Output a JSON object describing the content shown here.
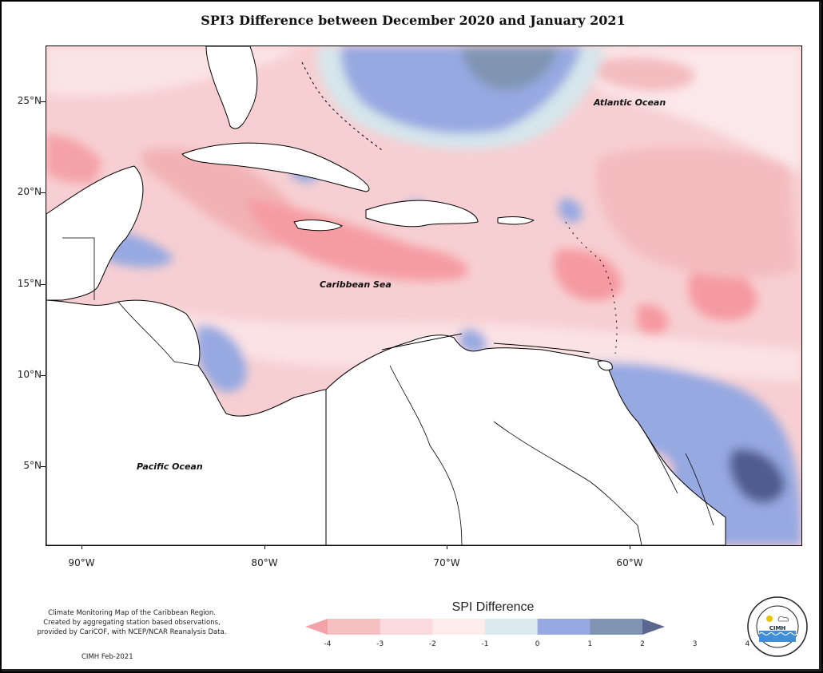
{
  "title": "SPI3 Difference between December 2020 and January 2021",
  "map": {
    "lat_labels": [
      "25°N",
      "20°N",
      "15°N",
      "10°N",
      "5°N"
    ],
    "lon_labels": [
      "90°W",
      "80°W",
      "70°W",
      "60°W"
    ],
    "region_labels": {
      "atlantic": "Atlantic Ocean",
      "caribbean": "Caribbean Sea",
      "pacific": "Pacific Ocean"
    }
  },
  "legend": {
    "title": "SPI Difference",
    "ticks": [
      "-4",
      "-3",
      "-2",
      "-1",
      "0",
      "1",
      "2",
      "3",
      "4"
    ],
    "colors": [
      "#f4a2a7",
      "#f6c0c3",
      "#fbdadd",
      "#fdecec",
      "#dce9ee",
      "#96a9e1",
      "#7f95b2",
      "#5c6790"
    ]
  },
  "footnote": {
    "line1": "Climate Monitoring Map of the Caribbean Region.",
    "line2": "Created by aggregating station based observations,",
    "line3": "provided by CariCOF, with NCEP/NCAR Reanalysis Data."
  },
  "credit": "CIMH Feb-2021",
  "logo": {
    "ring_text": "Caribbean Institute for Meteorology and Hydrology",
    "abbr": "CIMH",
    "icon": "cimh-logo-icon"
  },
  "colors": {
    "dry_strong": "#f59aa0",
    "dry_mid": "#f2b9bc",
    "dry_light": "#fbdadd",
    "neutral": "#fdf0f0",
    "wet_light": "#d6e6ec",
    "wet_mid": "#96a9e1",
    "wet_strong": "#7f95b2",
    "wet_extreme": "#4f5b8f"
  }
}
